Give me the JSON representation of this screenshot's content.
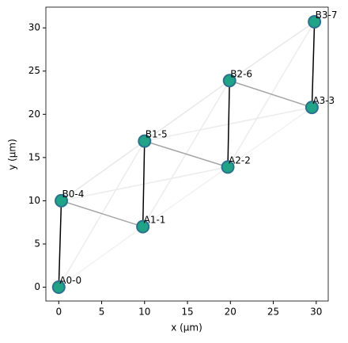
{
  "chart_data": {
    "type": "scatter",
    "xlabel": "x (µm)",
    "ylabel": "y (µm)",
    "xlim": [
      -1.5,
      31.4
    ],
    "ylim": [
      -1.6,
      32.4
    ],
    "xticks": [
      0,
      5,
      10,
      15,
      20,
      25,
      30
    ],
    "yticks": [
      0,
      5,
      10,
      15,
      20,
      25,
      30
    ],
    "grid": false,
    "x": [
      0,
      0.3,
      9.8,
      10.0,
      19.7,
      19.9,
      29.5,
      29.8
    ],
    "values": [
      0,
      10,
      7,
      16.9,
      13.9,
      23.9,
      20.8,
      30.7
    ],
    "point_labels": [
      "A0-0",
      "B0-4",
      "A1-1",
      "B1-5",
      "A2-2",
      "B2-6",
      "A3-3",
      "B3-7"
    ],
    "color": "#20a386",
    "edge_color": "#2c728e",
    "edges": [
      {
        "from": 0,
        "to": 3,
        "color": "#ececec"
      },
      {
        "from": 0,
        "to": 2,
        "color": "#f2f2f2"
      },
      {
        "from": 1,
        "to": 3,
        "color": "#e8e8e8"
      },
      {
        "from": 1,
        "to": 4,
        "color": "#ececec"
      },
      {
        "from": 2,
        "to": 5,
        "color": "#ececec"
      },
      {
        "from": 2,
        "to": 4,
        "color": "#f2f2f2"
      },
      {
        "from": 3,
        "to": 5,
        "color": "#e8e8e8"
      },
      {
        "from": 3,
        "to": 6,
        "color": "#ececec"
      },
      {
        "from": 4,
        "to": 7,
        "color": "#ececec"
      },
      {
        "from": 5,
        "to": 7,
        "color": "#e8e8e8"
      },
      {
        "from": 4,
        "to": 6,
        "color": "#f2f2f2"
      },
      {
        "from": 1,
        "to": 2,
        "color": "#a6a6a6"
      },
      {
        "from": 3,
        "to": 4,
        "color": "#a6a6a6"
      },
      {
        "from": 5,
        "to": 6,
        "color": "#a6a6a6"
      },
      {
        "from": 0,
        "to": 1,
        "color": "#000000"
      },
      {
        "from": 2,
        "to": 3,
        "color": "#000000"
      },
      {
        "from": 4,
        "to": 5,
        "color": "#000000"
      },
      {
        "from": 6,
        "to": 7,
        "color": "#000000"
      }
    ]
  }
}
